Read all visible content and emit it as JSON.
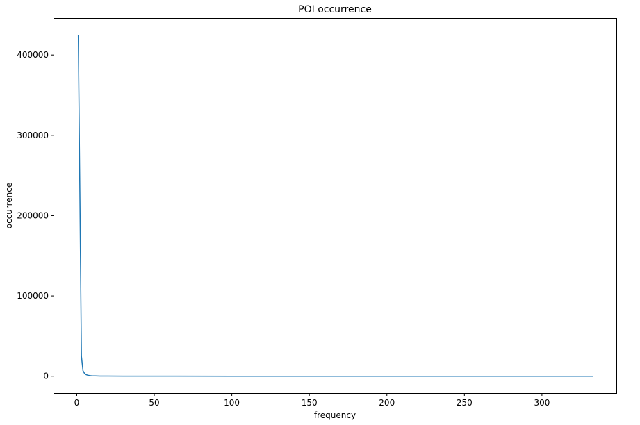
{
  "chart_data": {
    "type": "line",
    "title": "POI occurrence",
    "xlabel": "frequency",
    "ylabel": "occurrence",
    "xlim": [
      -15,
      348
    ],
    "ylim": [
      -21000,
      446000
    ],
    "x_ticks": [
      0,
      50,
      100,
      150,
      200,
      250,
      300
    ],
    "x_tick_labels": [
      "0",
      "50",
      "100",
      "150",
      "200",
      "250",
      "300"
    ],
    "y_ticks": [
      0,
      100000,
      200000,
      300000,
      400000
    ],
    "y_tick_labels": [
      "0",
      "100000",
      "200000",
      "300000",
      "400000"
    ],
    "grid": false,
    "legend": "none",
    "series": [
      {
        "color": "#1f77b4",
        "x": [
          1,
          2,
          3,
          4,
          5,
          6,
          7,
          8,
          9,
          10,
          12,
          15,
          20,
          30,
          50,
          100,
          150,
          200,
          250,
          300,
          333
        ],
        "y": [
          425000,
          230000,
          25000,
          7000,
          3500,
          2000,
          1300,
          900,
          650,
          500,
          350,
          230,
          150,
          90,
          50,
          20,
          10,
          6,
          4,
          3,
          2
        ]
      }
    ]
  }
}
